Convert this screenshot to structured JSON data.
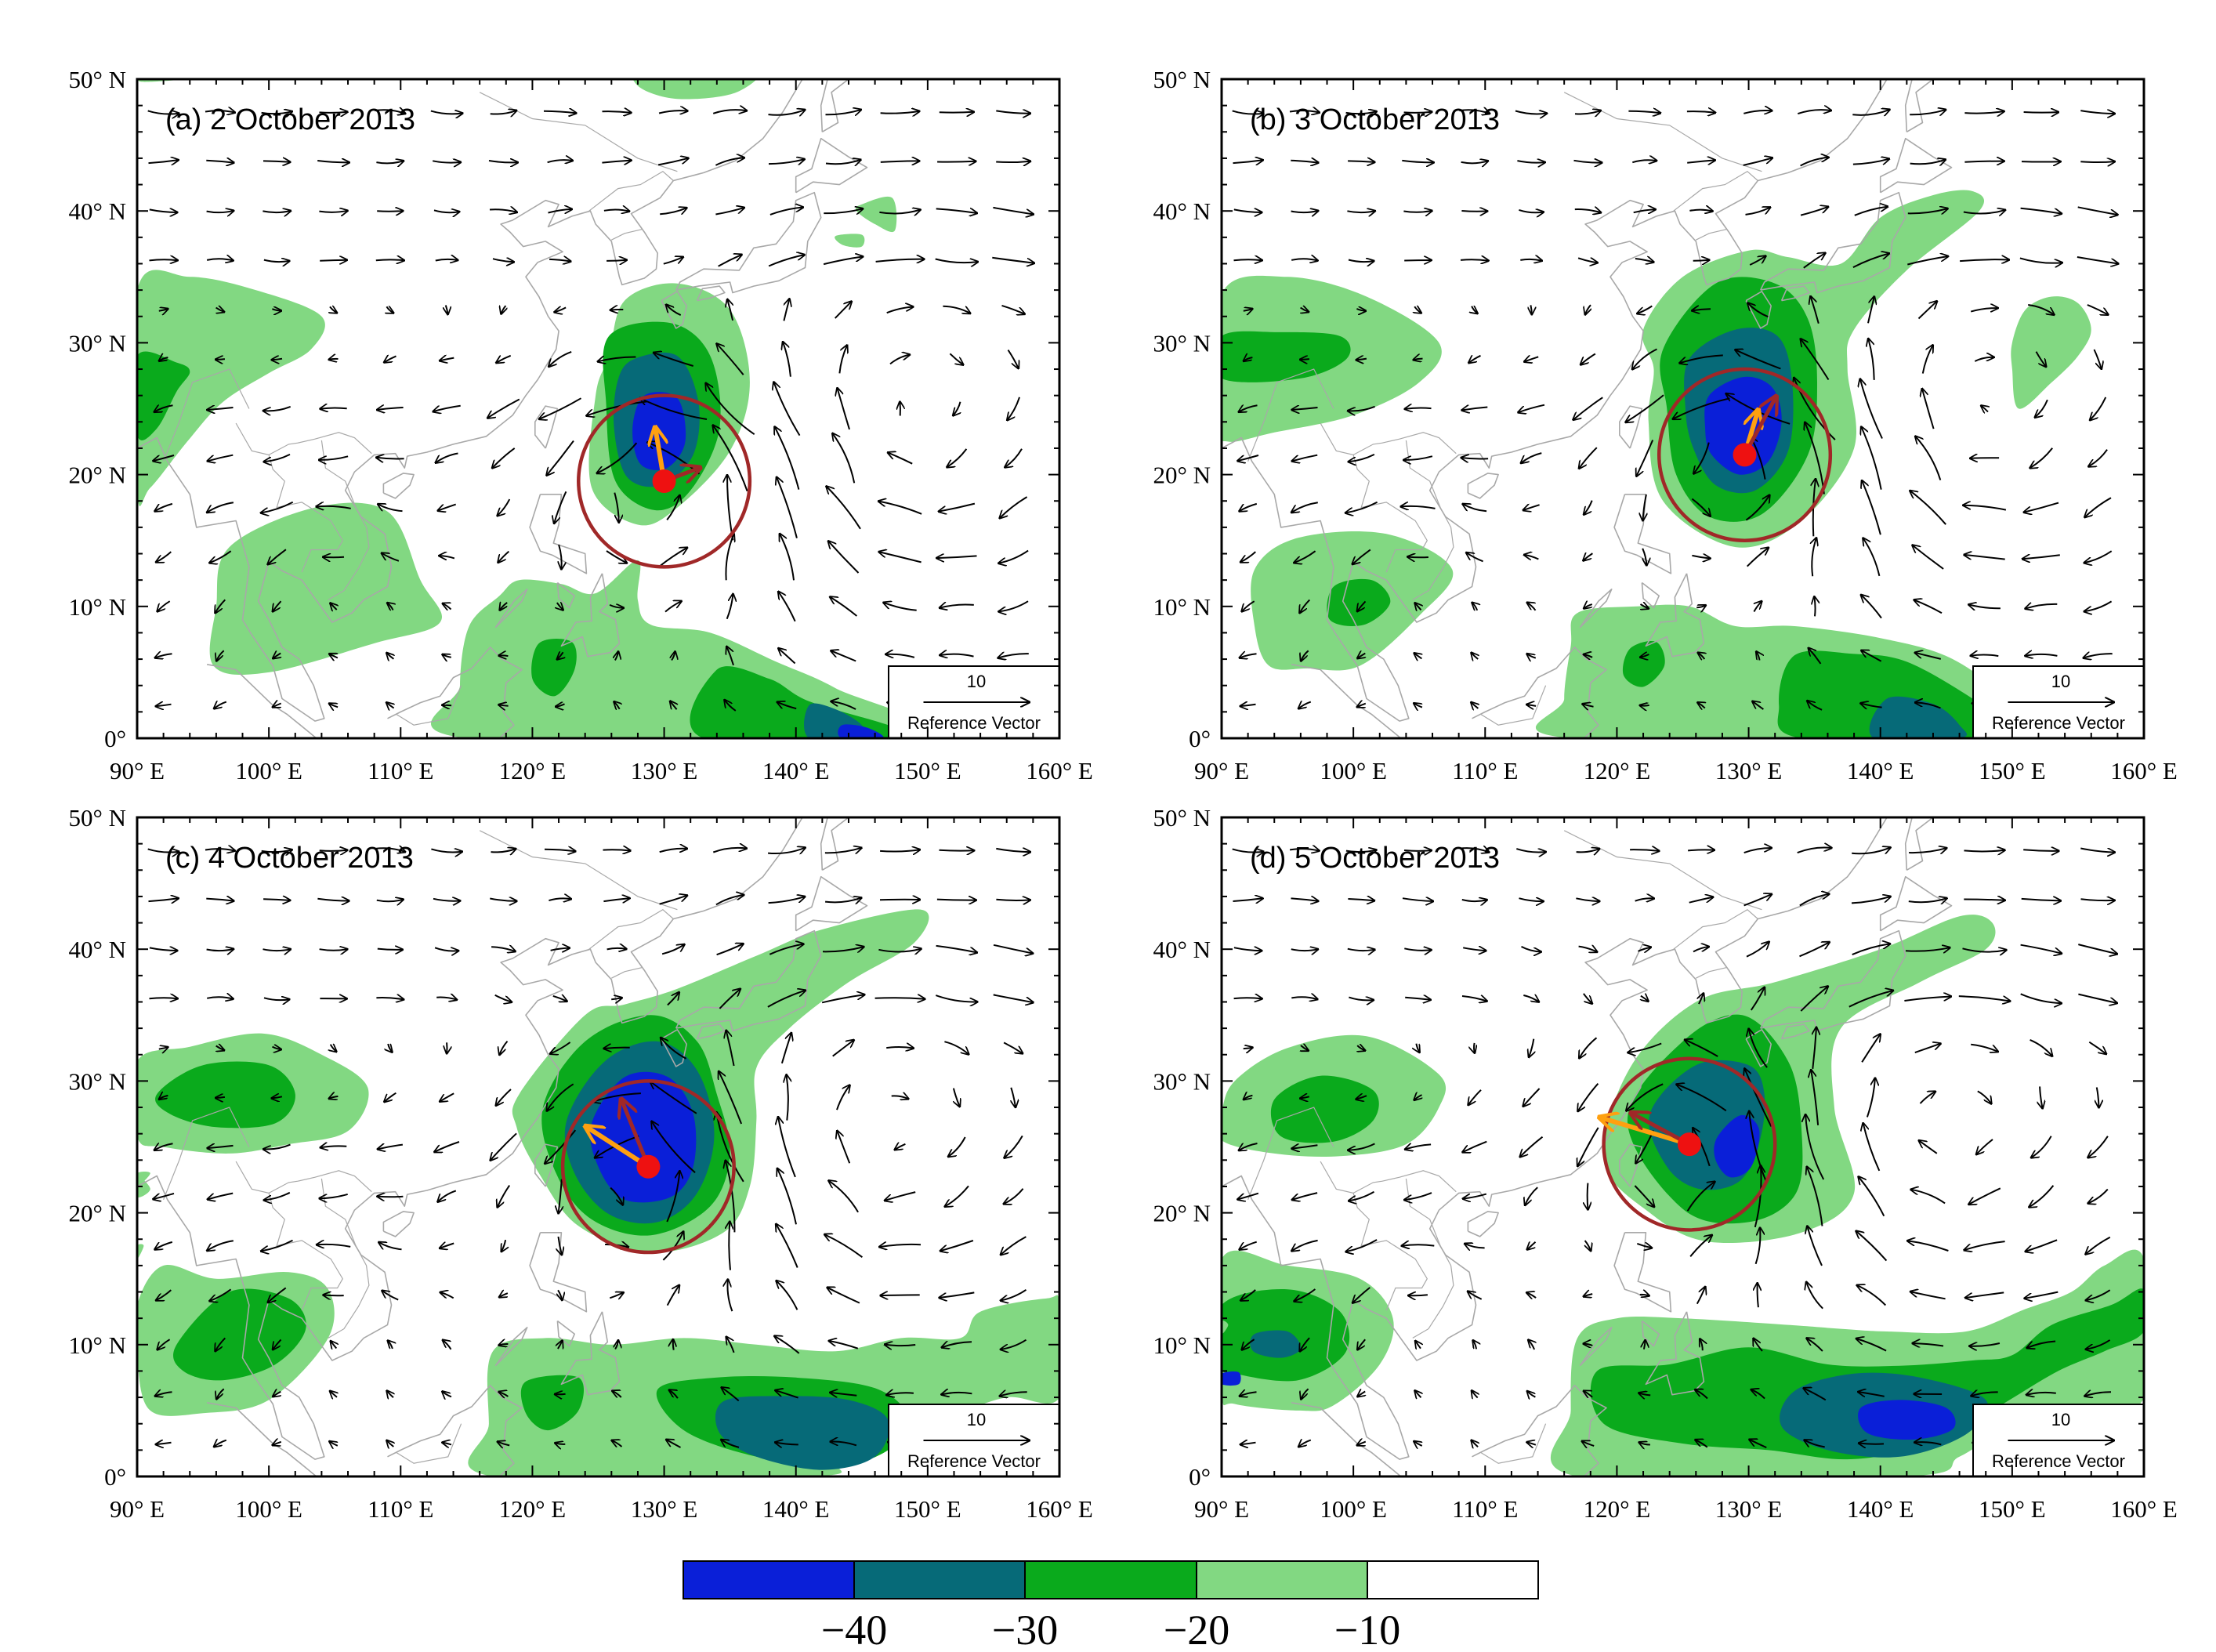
{
  "figure": {
    "colors": {
      "c_lt40": "#0a1fd8",
      "c_40_30": "#066a78",
      "c_30_20": "#0aaa1c",
      "c_20_10": "#82d882",
      "c_gt10": "#ffffff",
      "storm_center": "#ee1111",
      "track_vector": "#ffa010",
      "steering_vector": "#a02828",
      "steering_circle": "#a02828",
      "coast": "#a8a8a8",
      "wind": "#000000"
    },
    "axes": {
      "lat_labels": [
        "50° N",
        "40° N",
        "30° N",
        "20° N",
        "10° N",
        "0°"
      ],
      "lat_values": [
        50,
        40,
        30,
        20,
        10,
        0
      ],
      "lon_labels": [
        "90° E",
        "100° E",
        "110° E",
        "120° E",
        "130° E",
        "140° E",
        "150° E",
        "160° E"
      ],
      "lon_values": [
        90,
        100,
        110,
        120,
        130,
        140,
        150,
        160
      ]
    },
    "reference_vector": {
      "magnitude_label": "10",
      "caption": "Reference Vector",
      "magnitude": 10
    },
    "panels": [
      {
        "id": "a",
        "title": "(a) 2 October 2013",
        "storm_center": [
          130.0,
          19.5
        ],
        "track_vector": [
          -1.0,
          6.0
        ],
        "steering_vector": [
          4.0,
          1.5
        ],
        "circle_radius_deg": 6.5
      },
      {
        "id": "b",
        "title": "(b) 3 October 2013",
        "storm_center": [
          129.7,
          21.5
        ],
        "track_vector": [
          1.5,
          5.0
        ],
        "steering_vector": [
          3.5,
          6.5
        ],
        "circle_radius_deg": 6.5
      },
      {
        "id": "c",
        "title": "(c) 4 October 2013",
        "storm_center": [
          128.8,
          23.5
        ],
        "track_vector": [
          -7.0,
          4.5
        ],
        "steering_vector": [
          -3.0,
          7.5
        ],
        "circle_radius_deg": 6.5
      },
      {
        "id": "d",
        "title": "(d) 5 October 2013",
        "storm_center": [
          125.5,
          25.2
        ],
        "track_vector": [
          -10.0,
          3.0
        ],
        "steering_vector": [
          -6.5,
          3.5
        ],
        "circle_radius_deg": 6.5
      }
    ],
    "colorbar": {
      "labels": [
        "−40",
        "−30",
        "−20",
        "−10"
      ],
      "levels": [
        -40,
        -30,
        -20,
        -10
      ]
    }
  }
}
